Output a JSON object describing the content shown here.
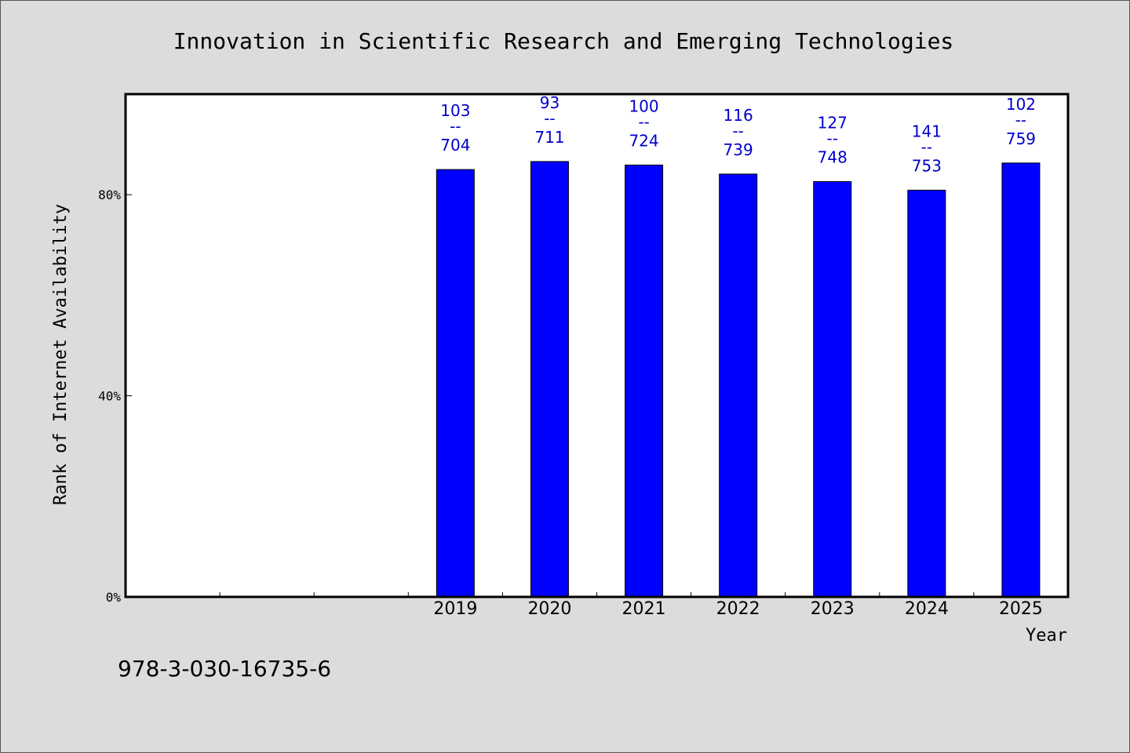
{
  "chart_data": {
    "type": "bar",
    "title": "Innovation in Scientific Research and Emerging Technologies",
    "xlabel": "Year",
    "ylabel": "Rank of Internet Availability",
    "y_ticks": [
      "0%",
      "40%",
      "80%"
    ],
    "y_tick_values": [
      0,
      40,
      80
    ],
    "ylim": [
      0,
      100
    ],
    "slots": 10,
    "categories": [
      "2019",
      "2020",
      "2021",
      "2022",
      "2023",
      "2024",
      "2025"
    ],
    "values": [
      85.0,
      86.6,
      85.9,
      84.1,
      82.6,
      80.9,
      86.3
    ],
    "data_labels": [
      {
        "top": "103",
        "sep": "--",
        "bottom": "704"
      },
      {
        "top": "93",
        "sep": "--",
        "bottom": "711"
      },
      {
        "top": "100",
        "sep": "--",
        "bottom": "724"
      },
      {
        "top": "116",
        "sep": "--",
        "bottom": "739"
      },
      {
        "top": "127",
        "sep": "--",
        "bottom": "748"
      },
      {
        "top": "141",
        "sep": "--",
        "bottom": "753"
      },
      {
        "top": "102",
        "sep": "--",
        "bottom": "759"
      }
    ],
    "bar_color": "#0000ff",
    "label_color": "#0000cc",
    "grid": false,
    "legend": "none"
  },
  "footer_text": "978-3-030-16735-6"
}
